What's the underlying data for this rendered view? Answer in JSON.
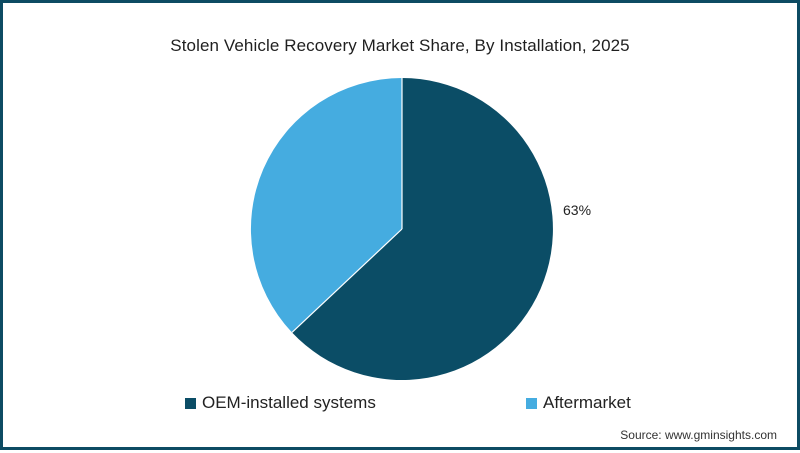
{
  "title": "Stolen Vehicle Recovery Market Share, By Installation, 2025",
  "source": "Source: www.gminsights.com",
  "legend": [
    {
      "label": "OEM-installed systems",
      "color": "#0b4d66"
    },
    {
      "label": "Aftermarket",
      "color": "#45ace0"
    }
  ],
  "labels": {
    "oem_pct": "63%"
  },
  "chart_data": {
    "type": "pie",
    "title": "Stolen Vehicle Recovery Market Share, By Installation, 2025",
    "categories": [
      "OEM-installed systems",
      "Aftermarket"
    ],
    "values": [
      63,
      37
    ],
    "unit": "%",
    "data_labels": [
      "63%",
      ""
    ],
    "colors": [
      "#0b4d66",
      "#45ace0"
    ],
    "start_angle": "12 o'clock, clockwise",
    "legend_position": "bottom",
    "source": "Source: www.gminsights.com"
  }
}
